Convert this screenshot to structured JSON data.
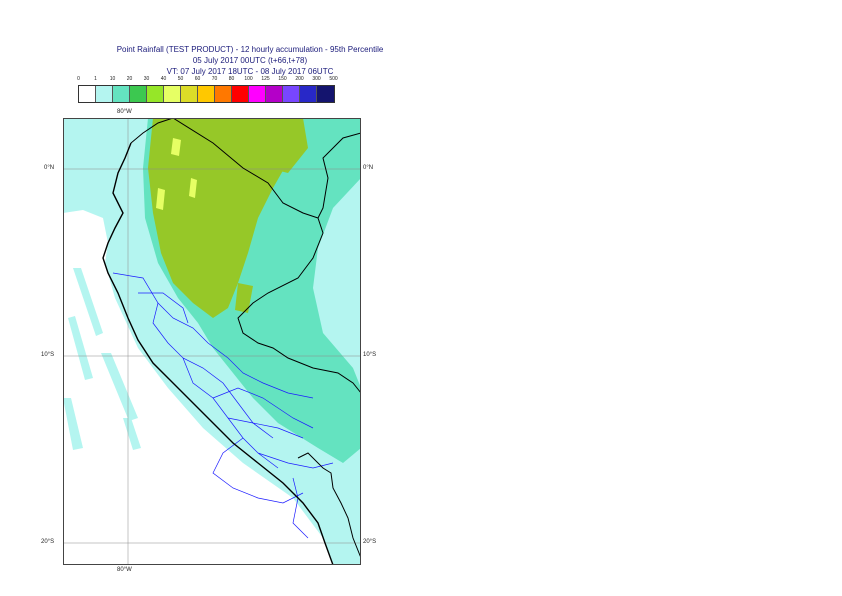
{
  "title": {
    "line1": "Point Rainfall (TEST PRODUCT) - 12 hourly accumulation - 95th Percentile",
    "line2": "05 July 2017 00UTC (t+66,t+78)",
    "line3": "VT: 07 July 2017 18UTC - 08 July 2017 06UTC"
  },
  "legend": {
    "thresholds": [
      "0",
      "1",
      "10",
      "20",
      "30",
      "40",
      "50",
      "60",
      "70",
      "80",
      "100",
      "125",
      "150",
      "200",
      "300",
      "500"
    ],
    "colors": [
      "#ffffff",
      "#b4f5f0",
      "#64e3c0",
      "#3cc850",
      "#96e628",
      "#e6ff64",
      "#dcdc28",
      "#ffc800",
      "#ff7800",
      "#ff0000",
      "#ff00ff",
      "#b400c8",
      "#7846ff",
      "#2828c8",
      "#14146e"
    ]
  },
  "axes": {
    "lon_top": "80°W",
    "lon_bottom": "80°W",
    "lat_labels": [
      "0°N",
      "10°S",
      "20°S"
    ]
  },
  "map": {
    "coast_color": "#000000",
    "regions_color": "#1c1cff",
    "sea_color": "#b4f5f0",
    "wet_color": "#64e3c0",
    "heavy_color": "#96c828"
  }
}
